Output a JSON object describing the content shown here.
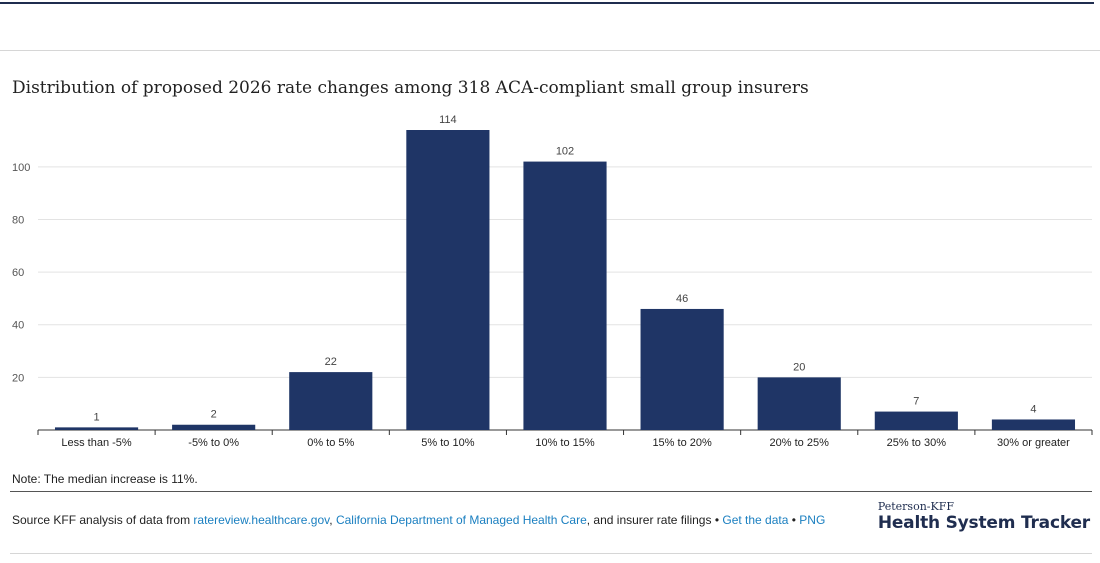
{
  "chart_data": {
    "type": "bar",
    "title": "Distribution of proposed 2026 rate changes among 318 ACA-compliant small group insurers",
    "categories": [
      "Less than -5%",
      "-5% to 0%",
      "0% to 5%",
      "5% to 10%",
      "10% to 15%",
      "15% to 20%",
      "20% to 25%",
      "25% to 30%",
      "30% or greater"
    ],
    "values": [
      1,
      2,
      22,
      114,
      102,
      46,
      20,
      7,
      4
    ],
    "yticks": [
      20,
      40,
      60,
      80,
      100
    ],
    "ylim": [
      0,
      114
    ],
    "xlabel": "",
    "ylabel": "",
    "grid": true,
    "bar_color": "#1f3566"
  },
  "note": "Note: The median increase is 11%.",
  "source": {
    "prefix": "Source KFF analysis of data from ",
    "link1": "ratereview.healthcare.gov",
    "sep1": ", ",
    "link2": "California Department of Managed Health Care",
    "middle": ", and insurer rate filings • ",
    "link3": "Get the data",
    "sep2": " • ",
    "link4": "PNG"
  },
  "logo": {
    "small": "Peterson-KFF",
    "big": "Health System Tracker"
  }
}
